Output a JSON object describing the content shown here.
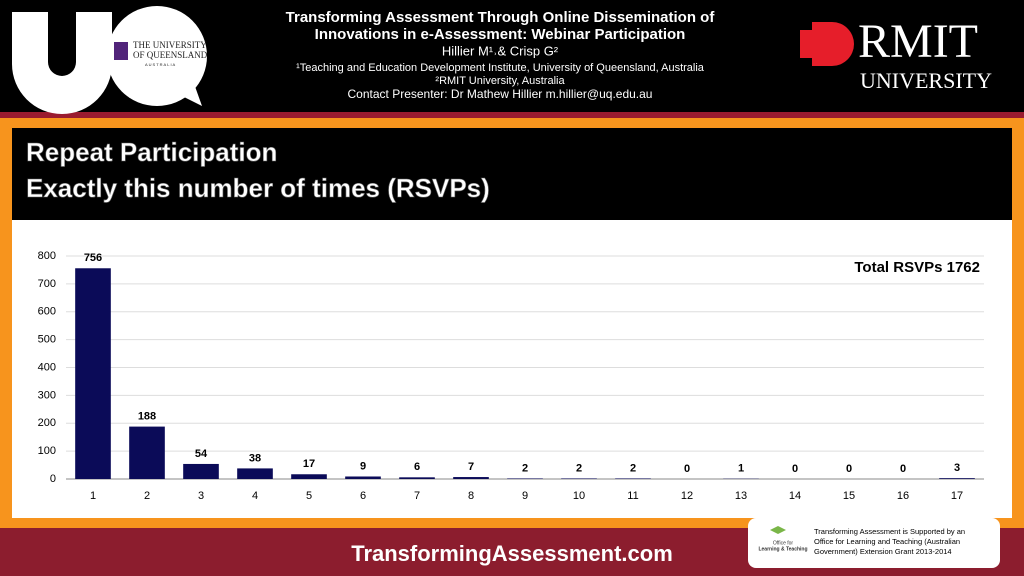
{
  "header": {
    "title_lines": [
      "Transforming Assessment Through Online Dissemination of",
      "Innovations in e-Assessment: Webinar Participation"
    ],
    "authors": "Hillier M¹˒& Crisp G²",
    "affiliations": [
      "¹Teaching and Education Development Institute, University of Queensland, Australia",
      "²RMIT University, Australia"
    ],
    "contact": "Contact Presenter: Dr Mathew Hillier m.hillier@uq.edu.au",
    "uq_logo": [
      "THE UNIVERSITY",
      "OF QUEENSLAND",
      "AUSTRALIA"
    ],
    "rmit_logo": [
      "RMIT",
      "UNIVERSITY"
    ]
  },
  "chart_data": {
    "type": "bar",
    "title_lines": [
      "Repeat Participation",
      "Exactly this number of times (RSVPs)"
    ],
    "annotation": "Total RSVPs 1762",
    "categories": [
      "1",
      "2",
      "3",
      "4",
      "5",
      "6",
      "7",
      "8",
      "9",
      "10",
      "11",
      "12",
      "13",
      "14",
      "15",
      "16",
      "17"
    ],
    "values": [
      756,
      188,
      54,
      38,
      17,
      9,
      6,
      7,
      2,
      2,
      2,
      0,
      1,
      0,
      0,
      0,
      3
    ],
    "color": "#0b0b58",
    "ylim": [
      0,
      800
    ],
    "yticks": [
      0,
      100,
      200,
      300,
      400,
      500,
      600,
      700,
      800
    ],
    "grid": true
  },
  "footer": {
    "website": "TransformingAssessment.com",
    "olt_logo": [
      "Office for",
      "Learning & Teaching"
    ],
    "support": [
      "Transforming Assessment is Supported by an",
      "Office for Learning and Teaching (Australian",
      "Government) Extension Grant 2013-2014"
    ]
  }
}
